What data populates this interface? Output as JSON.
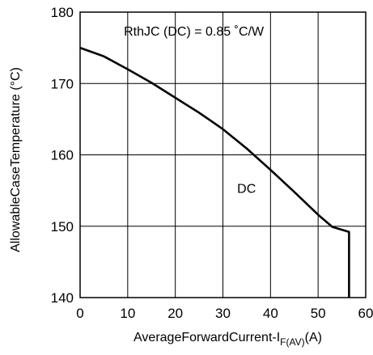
{
  "chart_data": {
    "type": "line",
    "xlabel_main": "AverageForwardCurrent-I",
    "xlabel_sub": "F(AV)",
    "xlabel_unit": "(A)",
    "ylabel": "AllowableCaseTemperature (°C)",
    "xlim": [
      0,
      60
    ],
    "ylim": [
      140,
      180
    ],
    "x_ticks": [
      "0",
      "10",
      "20",
      "30",
      "40",
      "50",
      "60"
    ],
    "y_ticks": [
      "140",
      "150",
      "160",
      "170",
      "180"
    ],
    "grid": true,
    "annotations": {
      "rth": "RthJC (DC) = 0.85 ˚C/W",
      "curve_label": "DC"
    },
    "series": [
      {
        "name": "DC",
        "x": [
          0,
          5,
          10,
          15,
          20,
          25,
          30,
          35,
          40,
          45,
          50,
          53,
          56.5,
          56.5
        ],
        "y": [
          175.0,
          173.8,
          172.0,
          170.1,
          168.0,
          165.9,
          163.6,
          160.9,
          157.9,
          154.8,
          151.6,
          149.9,
          149.2,
          140.0
        ]
      }
    ]
  }
}
